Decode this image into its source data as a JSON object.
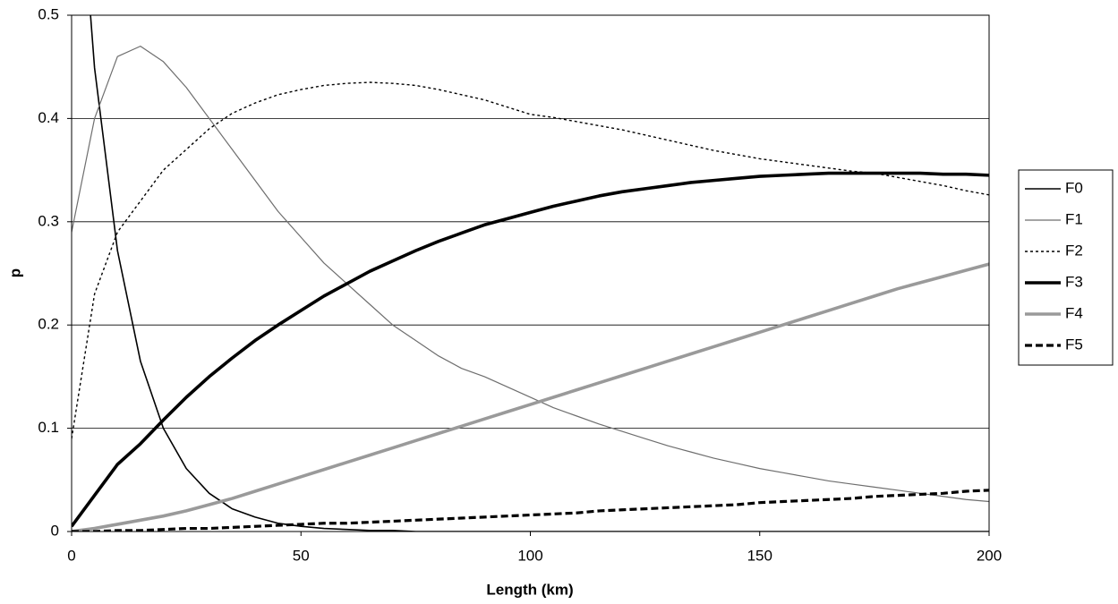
{
  "chart_data": {
    "type": "line",
    "x_label": "Length (km)",
    "y_label": "p",
    "x": [
      0,
      5,
      10,
      15,
      20,
      25,
      30,
      35,
      40,
      45,
      50,
      55,
      60,
      65,
      70,
      75,
      80,
      85,
      90,
      95,
      100,
      105,
      110,
      115,
      120,
      125,
      130,
      135,
      140,
      145,
      150,
      155,
      160,
      165,
      170,
      175,
      180,
      185,
      190,
      195,
      200
    ],
    "series": [
      {
        "name": "F0",
        "color": "#000000",
        "values": [
          0.74,
          0.449,
          0.272,
          0.165,
          0.1,
          0.061,
          0.037,
          0.022,
          0.014,
          0.008,
          0.005,
          0.003,
          0.002,
          0.001,
          0.001,
          0,
          0,
          0,
          0,
          0,
          0,
          0,
          0,
          0,
          0,
          0,
          0,
          0,
          0,
          0,
          0,
          0,
          0,
          0,
          0,
          0,
          0,
          0,
          0,
          0,
          0
        ]
      },
      {
        "name": "F1",
        "color": "#6e6e6e",
        "values": [
          0.29,
          0.4,
          0.46,
          0.47,
          0.455,
          0.43,
          0.4,
          0.37,
          0.34,
          0.31,
          0.285,
          0.26,
          0.24,
          0.22,
          0.2,
          0.185,
          0.17,
          0.158,
          0.15,
          0.14,
          0.13,
          0.12,
          0.112,
          0.104,
          0.097,
          0.09,
          0.083,
          0.077,
          0.071,
          0.066,
          0.061,
          0.057,
          0.053,
          0.049,
          0.046,
          0.043,
          0.04,
          0.037,
          0.034,
          0.031,
          0.029
        ]
      },
      {
        "name": "F2",
        "color": "#000000",
        "values": [
          0.09,
          0.23,
          0.29,
          0.32,
          0.35,
          0.37,
          0.39,
          0.405,
          0.415,
          0.423,
          0.428,
          0.432,
          0.434,
          0.435,
          0.434,
          0.432,
          0.428,
          0.423,
          0.418,
          0.411,
          0.404,
          0.401,
          0.397,
          0.393,
          0.389,
          0.384,
          0.379,
          0.374,
          0.369,
          0.365,
          0.361,
          0.358,
          0.355,
          0.352,
          0.349,
          0.347,
          0.343,
          0.339,
          0.335,
          0.33,
          0.326
        ]
      },
      {
        "name": "F3",
        "color": "#000000",
        "values": [
          0.005,
          0.035,
          0.065,
          0.085,
          0.108,
          0.13,
          0.15,
          0.168,
          0.185,
          0.2,
          0.214,
          0.228,
          0.24,
          0.252,
          0.262,
          0.272,
          0.281,
          0.289,
          0.297,
          0.303,
          0.309,
          0.315,
          0.32,
          0.325,
          0.329,
          0.332,
          0.335,
          0.338,
          0.34,
          0.342,
          0.344,
          0.345,
          0.346,
          0.347,
          0.347,
          0.347,
          0.347,
          0.347,
          0.346,
          0.346,
          0.345
        ]
      },
      {
        "name": "F4",
        "color": "#9a9a9a",
        "values": [
          0,
          0.003,
          0.007,
          0.011,
          0.015,
          0.02,
          0.026,
          0.032,
          0.039,
          0.046,
          0.053,
          0.06,
          0.067,
          0.074,
          0.081,
          0.088,
          0.095,
          0.102,
          0.109,
          0.116,
          0.123,
          0.13,
          0.137,
          0.144,
          0.151,
          0.158,
          0.165,
          0.172,
          0.179,
          0.186,
          0.193,
          0.2,
          0.207,
          0.214,
          0.221,
          0.228,
          0.235,
          0.241,
          0.247,
          0.253,
          0.259
        ]
      },
      {
        "name": "F5",
        "color": "#000000",
        "values": [
          0,
          0,
          0.001,
          0.001,
          0.002,
          0.003,
          0.003,
          0.004,
          0.005,
          0.006,
          0.007,
          0.008,
          0.008,
          0.009,
          0.01,
          0.011,
          0.012,
          0.013,
          0.014,
          0.015,
          0.016,
          0.017,
          0.018,
          0.02,
          0.021,
          0.022,
          0.023,
          0.024,
          0.025,
          0.026,
          0.028,
          0.029,
          0.03,
          0.031,
          0.032,
          0.034,
          0.035,
          0.036,
          0.037,
          0.039,
          0.04
        ]
      }
    ],
    "xlim": [
      0,
      200
    ],
    "xticks": [
      0,
      50,
      100,
      150,
      200
    ],
    "ylim": [
      0,
      0.5
    ],
    "yticks": [
      0,
      0.1,
      0.2,
      0.3,
      0.4,
      0.5
    ],
    "grid": true,
    "legend": "right"
  }
}
